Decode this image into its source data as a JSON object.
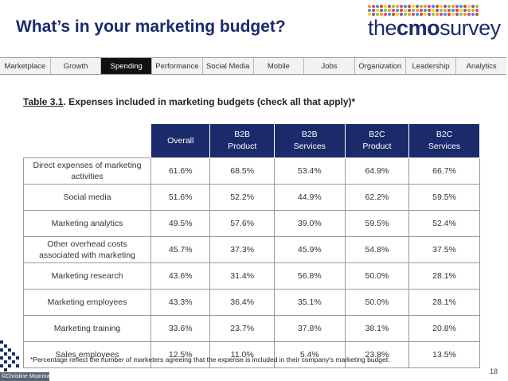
{
  "page": {
    "title": "What’s in your marketing budget?",
    "page_number": "18",
    "copyright": "©Christine Moorman"
  },
  "logo": {
    "text_part1": "the",
    "text_bold": "cmo",
    "text_part2": "survey"
  },
  "nav": {
    "tabs": [
      "Marketplace",
      "Growth",
      "Spending",
      "Performance",
      "Social Media",
      "Mobile",
      "Jobs",
      "Organization",
      "Leadership",
      "Analytics"
    ],
    "active_tab": "Spending"
  },
  "table": {
    "caption_num": "Table 3.1",
    "caption_text": ".   Expenses included in marketing budgets (check all that apply)*",
    "columns": [
      {
        "line1": "Overall",
        "line2": ""
      },
      {
        "line1": "B2B",
        "line2": "Product"
      },
      {
        "line1": "B2B",
        "line2": "Services"
      },
      {
        "line1": "B2C",
        "line2": "Product"
      },
      {
        "line1": "B2C",
        "line2": "Services"
      }
    ],
    "rows": [
      {
        "line1": "Direct expenses of marketing",
        "line2": "activities",
        "values": [
          "61.6%",
          "68.5%",
          "53.4%",
          "64.9%",
          "66.7%"
        ]
      },
      {
        "line1": "Social media",
        "line2": "",
        "values": [
          "51.6%",
          "52.2%",
          "44.9%",
          "62.2%",
          "59.5%"
        ]
      },
      {
        "line1": "Marketing analytics",
        "line2": "",
        "values": [
          "49.5%",
          "57.6%",
          "39.0%",
          "59.5%",
          "52.4%"
        ]
      },
      {
        "line1": "Other overhead costs",
        "line2": "associated with marketing",
        "values": [
          "45.7%",
          "37.3%",
          "45.9%",
          "54.8%",
          "37.5%"
        ]
      },
      {
        "line1": "Marketing research",
        "line2": "",
        "values": [
          "43.6%",
          "31.4%",
          "56.8%",
          "50.0%",
          "28.1%"
        ]
      },
      {
        "line1": "Marketing employees",
        "line2": "",
        "values": [
          "43.3%",
          "36.4%",
          "35.1%",
          "50.0%",
          "28.1%"
        ]
      },
      {
        "line1": "Marketing training",
        "line2": "",
        "values": [
          "33.6%",
          "23.7%",
          "37.8%",
          "38.1%",
          "20.8%"
        ]
      },
      {
        "line1": "Sales employees",
        "line2": "",
        "values": [
          "12.5%",
          "11.0%",
          "5.4%",
          "23.8%",
          "13.5%"
        ]
      }
    ],
    "footnote": "*Percentage reflect the number of marketers agreeing that the expense is included in their company's marketing budget."
  },
  "colors": {
    "brand_navy": "#1b2a6b",
    "active_tab": "#111111",
    "logo_dots": [
      "#f39a1e",
      "#e2462f",
      "#8cc63e",
      "#2b9fd9",
      "#9b4ea0",
      "#e83e8c",
      "#f7d117"
    ]
  }
}
